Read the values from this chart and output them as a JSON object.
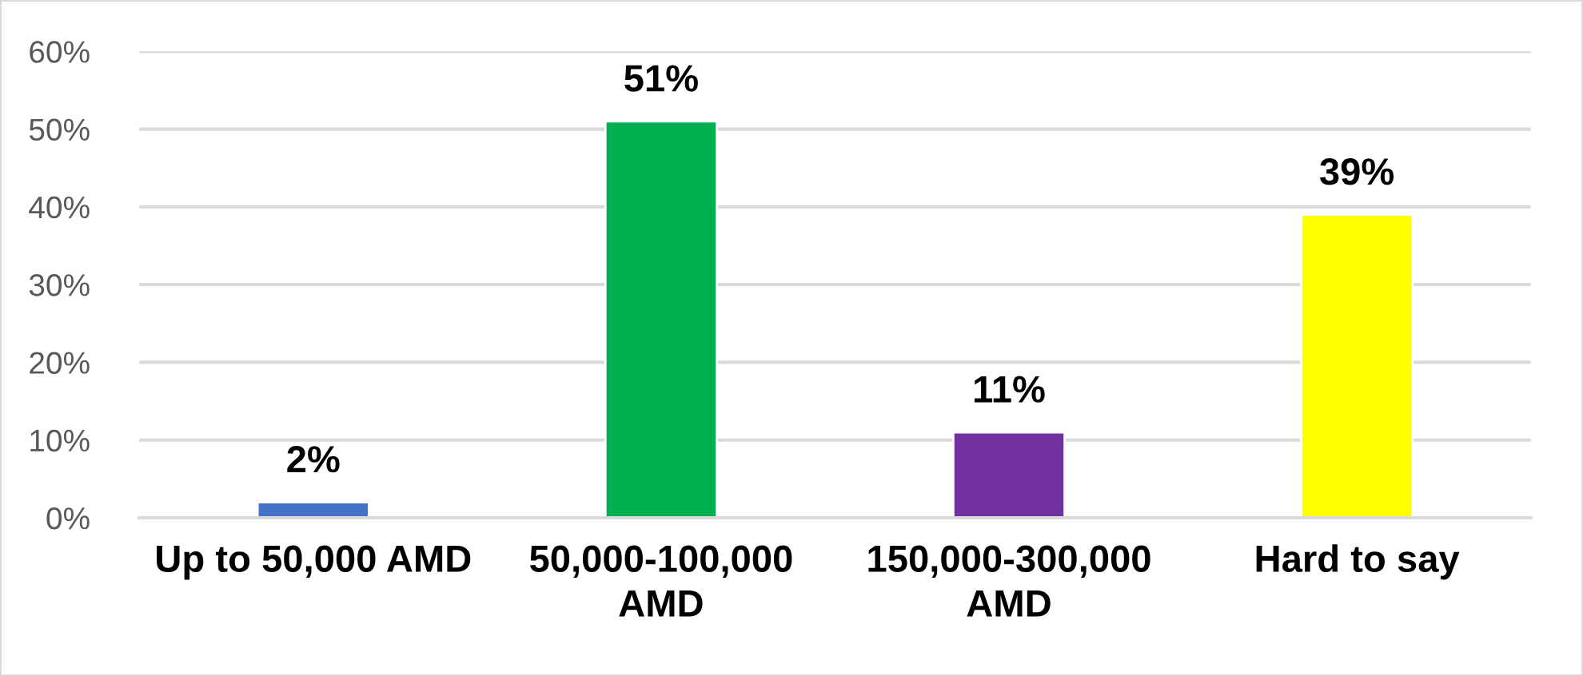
{
  "chart_data": {
    "type": "bar",
    "categories": [
      "Up to 50,000 AMD",
      "50,000-100,000 AMD",
      "150,000-300,000 AMD",
      "Hard to say"
    ],
    "values": [
      2,
      51,
      11,
      39
    ],
    "colors": [
      "#4472c4",
      "#00b050",
      "#7030a0",
      "#ffff00"
    ],
    "value_labels": [
      "2%",
      "51%",
      "11%",
      "39%"
    ],
    "ylim": [
      0,
      60
    ],
    "yticks": [
      {
        "value": 0,
        "label": "0%"
      },
      {
        "value": 10,
        "label": "10%"
      },
      {
        "value": 20,
        "label": "20%"
      },
      {
        "value": 30,
        "label": "30%"
      },
      {
        "value": 40,
        "label": "40%"
      },
      {
        "value": 50,
        "label": "50%"
      },
      {
        "value": 60,
        "label": "60%"
      }
    ],
    "grid": "y"
  }
}
